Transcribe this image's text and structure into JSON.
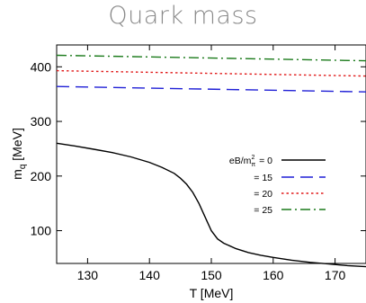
{
  "chart_data": {
    "type": "line",
    "title": "Quark mass",
    "xlabel": "T [MeV]",
    "ylabel": "m_q [MeV]",
    "ylabel_main": "m",
    "ylabel_sub": "q",
    "ylabel_unit": " [MeV]",
    "xlim": [
      125,
      175
    ],
    "ylim": [
      40,
      440
    ],
    "xticks": [
      130,
      140,
      150,
      160,
      170
    ],
    "yticks": [
      100,
      200,
      300,
      400
    ],
    "grid": false,
    "legend_position": "right",
    "legend_title_prefix": "eB/m",
    "legend_title_sup": "2",
    "legend_title_sub": "π",
    "series": [
      {
        "name": "= 0",
        "color": "#000000",
        "dash": "solid",
        "x": [
          125,
          128,
          131,
          134,
          137,
          140,
          142,
          144,
          145,
          146,
          147,
          148,
          149,
          150,
          151,
          152,
          154,
          156,
          158,
          160,
          163,
          166,
          169,
          172,
          175
        ],
        "y": [
          260,
          255,
          249,
          243,
          235,
          225,
          216,
          205,
          196,
          185,
          170,
          150,
          125,
          100,
          85,
          77,
          67,
          60,
          55,
          51,
          46,
          42,
          39,
          36,
          34
        ]
      },
      {
        "name": "= 15",
        "color": "#1f1fd6",
        "dash": "long-dash",
        "x": [
          125,
          175
        ],
        "y": [
          364,
          354
        ]
      },
      {
        "name": "= 20",
        "color": "#e11b1b",
        "dash": "dotted",
        "x": [
          125,
          175
        ],
        "y": [
          393,
          383
        ]
      },
      {
        "name": "= 25",
        "color": "#1a7a1a",
        "dash": "dash-dot",
        "x": [
          125,
          175
        ],
        "y": [
          421,
          411
        ]
      }
    ]
  }
}
